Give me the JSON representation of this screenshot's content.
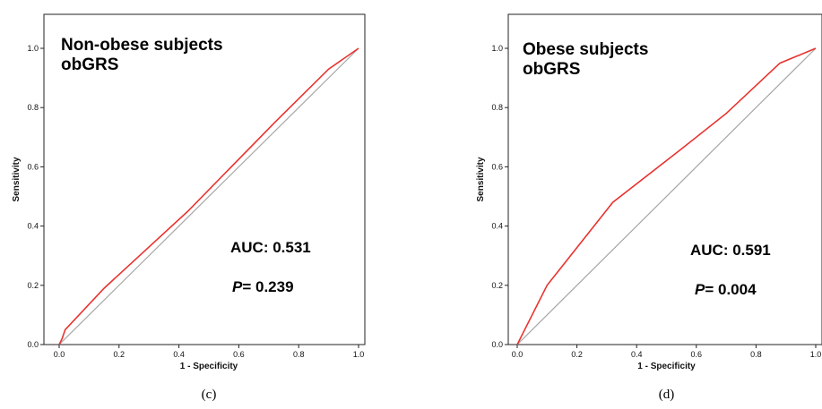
{
  "chart_data": [
    {
      "type": "line",
      "title_lines": [
        "Non-obese subjects",
        "obGRS"
      ],
      "xlabel": "1 - Specificity",
      "ylabel": "Sensitivity",
      "xlim": [
        0,
        1
      ],
      "ylim": [
        0,
        1
      ],
      "ticks": [
        "0.0",
        "0.2",
        "0.4",
        "0.6",
        "0.8",
        "1.0"
      ],
      "auc_label": "AUC: 0.531",
      "p_label": "P",
      "p_value": "= 0.239",
      "panel_label": "(c)",
      "series": [
        {
          "color": "#e8332f",
          "x": [
            0.0,
            0.01,
            0.02,
            0.15,
            0.43,
            0.72,
            0.9,
            1.0
          ],
          "y": [
            0.0,
            0.02,
            0.05,
            0.19,
            0.45,
            0.75,
            0.93,
            1.0
          ]
        },
        {
          "color": "#a6a6a6",
          "x": [
            0,
            1
          ],
          "y": [
            0,
            1
          ]
        }
      ]
    },
    {
      "type": "line",
      "title_lines": [
        "Obese subjects",
        "obGRS"
      ],
      "xlabel": "1 - Specificity",
      "ylabel": "Sensitivity",
      "xlim": [
        0,
        1
      ],
      "ylim": [
        0,
        1
      ],
      "ticks": [
        "0.0",
        "0.2",
        "0.4",
        "0.6",
        "0.8",
        "1.0"
      ],
      "auc_label": "AUC: 0.591",
      "p_label": "P",
      "p_value": "= 0.004",
      "panel_label": "(d)",
      "series": [
        {
          "color": "#e8332f",
          "x": [
            0.0,
            0.1,
            0.32,
            0.55,
            0.7,
            0.88,
            1.0
          ],
          "y": [
            0.0,
            0.2,
            0.48,
            0.66,
            0.78,
            0.95,
            1.0
          ]
        },
        {
          "color": "#a6a6a6",
          "x": [
            0,
            1
          ],
          "y": [
            0,
            1
          ]
        }
      ]
    }
  ]
}
